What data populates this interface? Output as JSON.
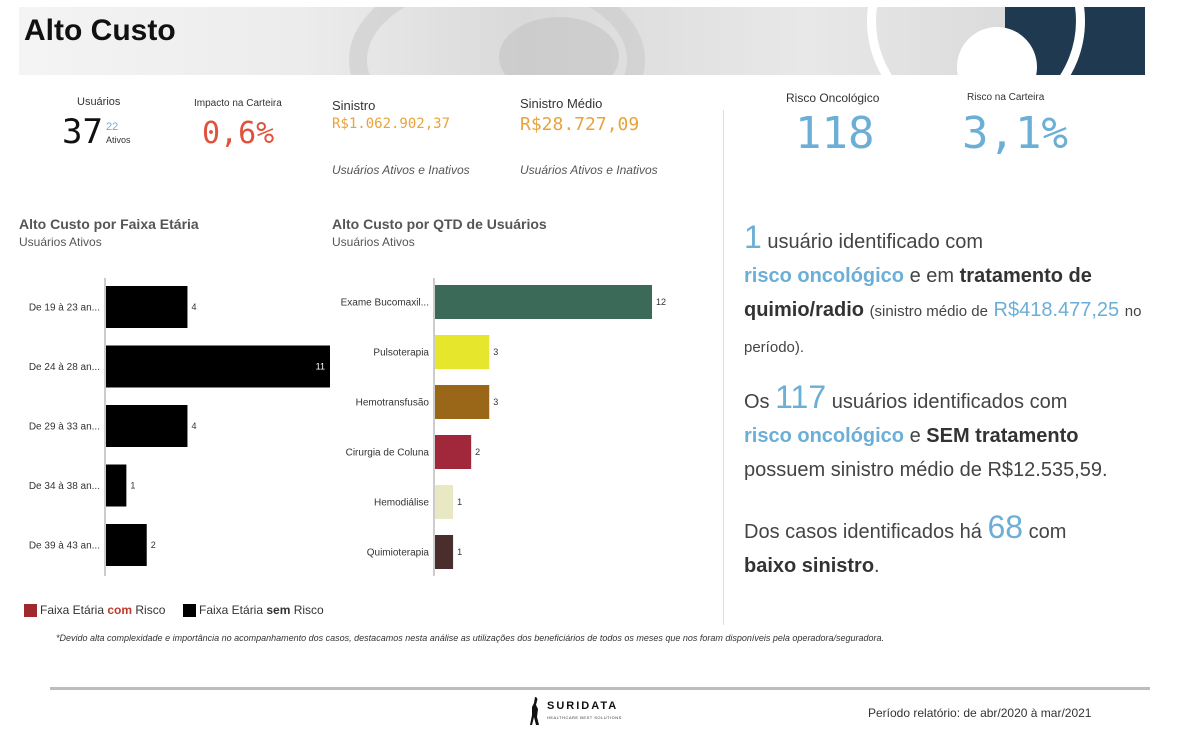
{
  "header": {
    "title": "Alto Custo"
  },
  "kpis": {
    "usuarios": {
      "label": "Usuários",
      "value": "37",
      "ativos_value": "22",
      "ativos_label": "Ativos"
    },
    "impacto": {
      "label": "Impacto na Carteira",
      "value": "0,6%"
    },
    "sinistro": {
      "label": "Sinistro",
      "value": "R$1.062.902,37",
      "note": "Usuários Ativos e Inativos"
    },
    "sinistro_medio": {
      "label": "Sinistro Médio",
      "value": "R$28.727,09",
      "note": "Usuários Ativos e Inativos"
    },
    "risco_oncologico": {
      "label": "Risco Oncológico",
      "value": "118"
    },
    "risco_carteira": {
      "label": "Risco na Carteira",
      "value": "3,1%"
    }
  },
  "chart_data": [
    {
      "type": "bar",
      "orientation": "horizontal",
      "title": "Alto Custo por Faixa Etária",
      "subtitle": "Usuários Ativos",
      "categories": [
        "De 19 à 23 an...",
        "De 24 à 28 an...",
        "De 29 à 33 an...",
        "De 34 à 38 an...",
        "De 39 à 43 an..."
      ],
      "values": [
        4,
        11,
        4,
        1,
        2
      ],
      "colors": [
        "#000000",
        "#000000",
        "#000000",
        "#000000",
        "#000000"
      ],
      "xlim": [
        0,
        11
      ],
      "legend": [
        {
          "parts": [
            "Faixa Etária ",
            "com",
            " Risco"
          ],
          "color": "#a0282f",
          "accent": "#c0392b"
        },
        {
          "parts": [
            "Faixa Etária ",
            "sem",
            " Risco"
          ],
          "color": "#000000",
          "accent": "#000000"
        }
      ]
    },
    {
      "type": "bar",
      "orientation": "horizontal",
      "title": "Alto Custo por QTD de Usuários",
      "subtitle": "Usuários Ativos",
      "categories": [
        "Exame Bucomaxil...",
        "Pulsoterapia",
        "Hemotransfusão",
        "Cirurgia de Coluna",
        "Hemodiálise",
        "Quimioterapia"
      ],
      "values": [
        12,
        3,
        3,
        2,
        1,
        1
      ],
      "colors": [
        "#3b6b58",
        "#e6e62d",
        "#9a6718",
        "#a0283a",
        "#e8e8c2",
        "#4a2e2e"
      ],
      "xlim": [
        0,
        12
      ]
    }
  ],
  "story": {
    "p1": {
      "num": "1",
      "t1": "usuário identificado com",
      "hl": "risco oncológico",
      "t2": "e em",
      "bold": "tratamento de quimio/radio",
      "t3": "(sinistro médio de",
      "value": "R$418.477,25",
      "t4": "no período)."
    },
    "p2": {
      "t0": "Os",
      "num": "117",
      "t1": "usuários identificados com",
      "hl": "risco oncológico",
      "t2": "e",
      "bold": "SEM tratamento",
      "t3": "possuem sinistro médio de R$12.535,59."
    },
    "p3": {
      "t1": "Dos casos identificados há",
      "num": "68",
      "t2": "com",
      "bold": "baixo sinistro",
      "t3": "."
    }
  },
  "footnote": "*Devido alta complexidade e importância no acompanhamento dos casos, destacamos nesta análise as utilizações dos beneficiários de todos os meses que nos foram disponíveis pela operadora/seguradora.",
  "footer": {
    "brand": "SURIDATA",
    "tagline": "HEALTHCARE BEST SOLUTIONS",
    "periodo": "Período relatório: de abr/2020 à mar/2021"
  },
  "colors": {
    "accent_blue": "#6baed6",
    "impacto_red": "#e0533a",
    "sinistro_orange": "#e8a33c",
    "banner_dark": "#1f3a50"
  }
}
